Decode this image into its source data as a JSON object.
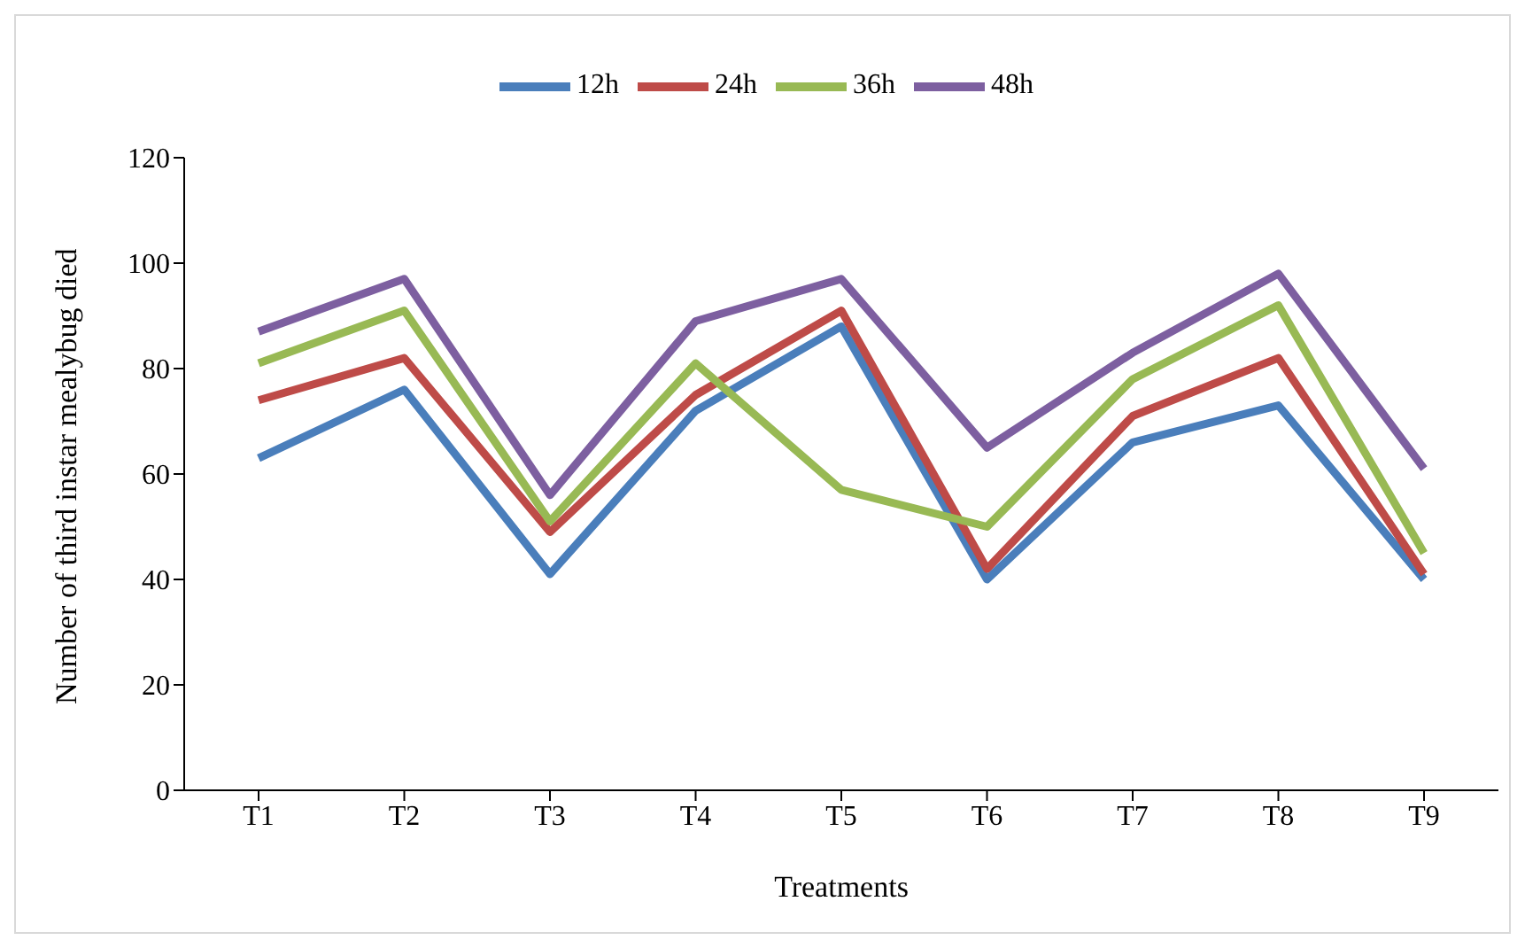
{
  "chart_data": {
    "type": "line",
    "xlabel": "Treatments",
    "ylabel": "Number of third instar mealybug died",
    "categories": [
      "T1",
      "T2",
      "T3",
      "T4",
      "T5",
      "T6",
      "T7",
      "T8",
      "T9"
    ],
    "series": [
      {
        "name": "12h",
        "color": "#4a7ebb",
        "values": [
          63,
          76,
          41,
          72,
          88,
          40,
          66,
          73,
          40
        ]
      },
      {
        "name": "24h",
        "color": "#be4b48",
        "values": [
          74,
          82,
          49,
          75,
          91,
          42,
          71,
          82,
          41
        ]
      },
      {
        "name": "36h",
        "color": "#98b954",
        "values": [
          81,
          91,
          51,
          81,
          57,
          50,
          78,
          92,
          45
        ]
      },
      {
        "name": "48h",
        "color": "#7d5fa0",
        "values": [
          87,
          97,
          56,
          89,
          97,
          65,
          83,
          98,
          61
        ]
      }
    ],
    "ylim": [
      0,
      120
    ],
    "yticks": [
      0,
      20,
      40,
      60,
      80,
      100,
      120
    ],
    "grid": false,
    "legend": "top",
    "marker": "none",
    "line_style": "solid"
  }
}
